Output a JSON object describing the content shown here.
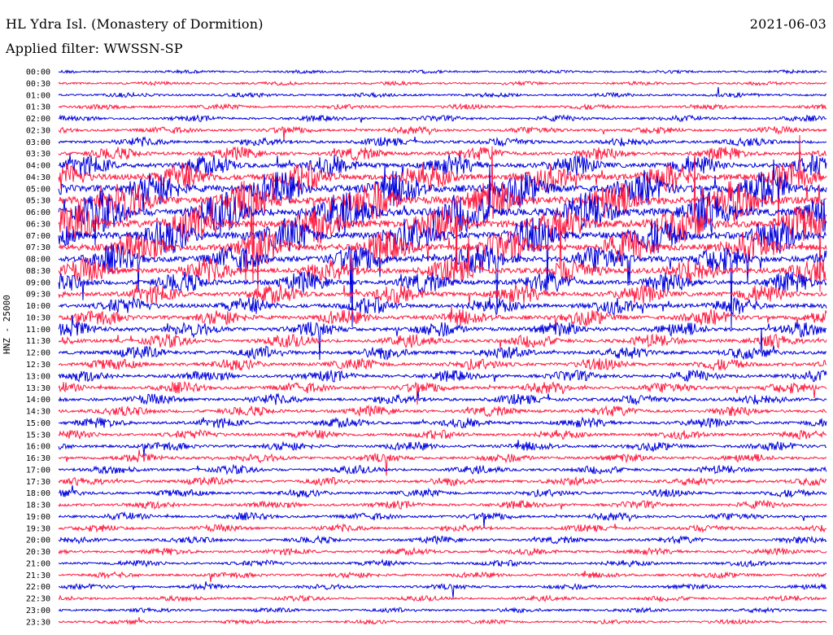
{
  "header": {
    "station": "HL Ydra Isl. (Monastery of Dormition)",
    "date": "2021-06-03",
    "filter_label": "Applied filter: WWSSN-SP"
  },
  "axis": {
    "ylabel": "HNZ - 25000"
  },
  "colors": {
    "even_trace": "#0000dd",
    "odd_trace": "#ff1a40",
    "background": "#ffffff",
    "text": "#000000"
  },
  "chart_data": {
    "type": "line",
    "title": "HL Ydra Isl. (Monastery of Dormition)",
    "subtitle": "Applied filter: WWSSN-SP",
    "ylabel": "HNZ - 25000",
    "xlabel": "",
    "grid": false,
    "legend": "none",
    "rows": [
      "00:00",
      "00:30",
      "01:00",
      "01:30",
      "02:00",
      "02:30",
      "03:00",
      "03:30",
      "04:00",
      "04:30",
      "05:00",
      "05:30",
      "06:00",
      "06:30",
      "07:00",
      "07:30",
      "08:00",
      "08:30",
      "09:00",
      "09:30",
      "10:00",
      "10:30",
      "11:00",
      "11:30",
      "12:00",
      "12:30",
      "13:00",
      "13:30",
      "14:00",
      "14:30",
      "15:00",
      "15:30",
      "16:00",
      "16:30",
      "17:00",
      "17:30",
      "18:00",
      "18:30",
      "19:00",
      "19:30",
      "20:00",
      "20:30",
      "21:00",
      "21:30",
      "22:00",
      "22:30",
      "23:00",
      "23:30"
    ],
    "row_activity": [
      0.05,
      0.06,
      0.08,
      0.1,
      0.12,
      0.15,
      0.2,
      0.3,
      0.5,
      0.7,
      0.9,
      1.0,
      1.0,
      0.95,
      0.9,
      0.8,
      0.7,
      0.6,
      0.5,
      0.45,
      0.4,
      0.38,
      0.35,
      0.3,
      0.3,
      0.28,
      0.26,
      0.25,
      0.24,
      0.23,
      0.22,
      0.2,
      0.2,
      0.19,
      0.18,
      0.18,
      0.17,
      0.17,
      0.16,
      0.15,
      0.15,
      0.14,
      0.13,
      0.12,
      0.11,
      0.1,
      0.09,
      0.08
    ]
  }
}
